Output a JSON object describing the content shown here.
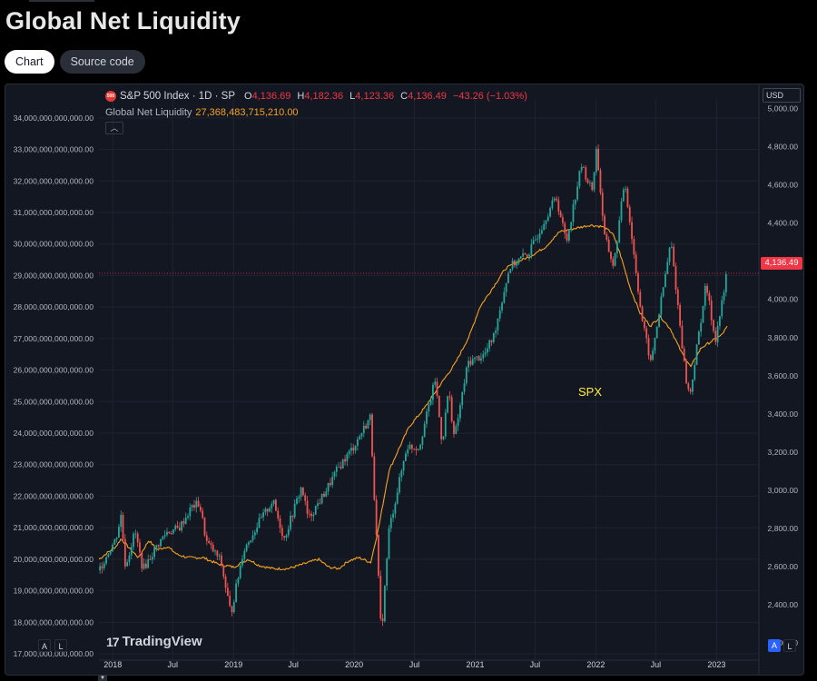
{
  "page": {
    "title": "Global Net Liquidity",
    "tabs": [
      {
        "label": "Chart",
        "active": true
      },
      {
        "label": "Source code",
        "active": false
      }
    ]
  },
  "legend": {
    "symbol_badge": "500",
    "symbol": "S&P 500 Index · 1D · SP",
    "ohlc": [
      {
        "k": "O",
        "v": "4,136.69"
      },
      {
        "k": "H",
        "v": "4,182.36"
      },
      {
        "k": "L",
        "v": "4,123.36"
      },
      {
        "k": "C",
        "v": "4,136.49"
      }
    ],
    "change": "−43.26 (−1.03%)",
    "indicator_name": "Global Net Liquidity",
    "indicator_value": "27,368,483,715,210.00",
    "collapse_icon": "chevron-up-icon"
  },
  "currency_button": "USD",
  "last_price_tag": "4,136.49",
  "annotation": "SPX",
  "brand": "TradingView",
  "scale_buttons": {
    "left_a": "A",
    "left_l": "L",
    "right_a": "A",
    "right_l": "L"
  },
  "colors": {
    "background": "#131722",
    "up": "#26a69a",
    "down": "#ef5350",
    "liquidity": "#f7a21b",
    "annotation": "#ffeb3b",
    "price_line": "#f23645"
  },
  "chart_data": {
    "type": "line",
    "x_ticks": [
      "2018",
      "Jul",
      "2019",
      "Jul",
      "2020",
      "Jul",
      "2021",
      "Jul",
      "2022",
      "Jul",
      "2023"
    ],
    "left_axis": {
      "ticks": [
        "34,000,000,000,000.00",
        "33,000,000,000,000.00",
        "32,000,000,000,000.00",
        "31,000,000,000,000.00",
        "30,000,000,000,000.00",
        "29,000,000,000,000.00",
        "28,000,000,000,000.00",
        "27,000,000,000,000.00",
        "26,000,000,000,000.00",
        "25,000,000,000,000.00",
        "24,000,000,000,000.00",
        "23,000,000,000,000.00",
        "22,000,000,000,000.00",
        "21,000,000,000,000.00",
        "20,000,000,000,000.00",
        "19,000,000,000,000.00",
        "18,000,000,000,000.00",
        "17,000,000,000,000.00"
      ],
      "range": [
        16800000000000,
        34600000000000
      ]
    },
    "right_axis": {
      "ticks": [
        "5,000.00",
        "4,800.00",
        "4,600.00",
        "4,400.00",
        "4,200.00",
        "4,000.00",
        "3,800.00",
        "3,600.00",
        "3,400.00",
        "3,200.00",
        "3,000.00",
        "2,800.00",
        "2,600.00",
        "2,400.00",
        "2,200.00"
      ],
      "range": [
        2110,
        5050
      ]
    },
    "series": [
      {
        "kind": "candles",
        "axis": "right",
        "points": [
          [
            "2017-11-20",
            2580
          ],
          [
            "2017-12-15",
            2665
          ],
          [
            "2018-01-10",
            2745
          ],
          [
            "2018-01-26",
            2870
          ],
          [
            "2018-02-08",
            2600
          ],
          [
            "2018-03-09",
            2785
          ],
          [
            "2018-04-02",
            2585
          ],
          [
            "2018-05-15",
            2710
          ],
          [
            "2018-06-12",
            2780
          ],
          [
            "2018-07-20",
            2800
          ],
          [
            "2018-08-29",
            2915
          ],
          [
            "2018-09-20",
            2930
          ],
          [
            "2018-10-11",
            2730
          ],
          [
            "2018-11-23",
            2630
          ],
          [
            "2018-12-24",
            2350
          ],
          [
            "2019-01-30",
            2680
          ],
          [
            "2019-03-15",
            2820
          ],
          [
            "2019-04-30",
            2945
          ],
          [
            "2019-06-03",
            2745
          ],
          [
            "2019-07-26",
            3020
          ],
          [
            "2019-08-15",
            2850
          ],
          [
            "2019-09-30",
            2975
          ],
          [
            "2019-11-15",
            3120
          ],
          [
            "2019-12-31",
            3230
          ],
          [
            "2020-02-19",
            3385
          ],
          [
            "2020-03-23",
            2235
          ],
          [
            "2020-04-15",
            2790
          ],
          [
            "2020-06-08",
            3230
          ],
          [
            "2020-07-15",
            3225
          ],
          [
            "2020-09-02",
            3580
          ],
          [
            "2020-09-23",
            3240
          ],
          [
            "2020-10-12",
            3530
          ],
          [
            "2020-10-30",
            3270
          ],
          [
            "2020-12-10",
            3670
          ],
          [
            "2021-01-29",
            3710
          ],
          [
            "2021-02-26",
            3810
          ],
          [
            "2021-04-15",
            4170
          ],
          [
            "2021-06-15",
            4250
          ],
          [
            "2021-08-16",
            4480
          ],
          [
            "2021-09-03",
            4535
          ],
          [
            "2021-10-04",
            4300
          ],
          [
            "2021-11-18",
            4705
          ],
          [
            "2021-12-20",
            4570
          ],
          [
            "2022-01-03",
            4795
          ],
          [
            "2022-01-27",
            4330
          ],
          [
            "2022-02-24",
            4170
          ],
          [
            "2022-03-29",
            4630
          ],
          [
            "2022-05-20",
            3900
          ],
          [
            "2022-06-16",
            3665
          ],
          [
            "2022-08-16",
            4305
          ],
          [
            "2022-09-30",
            3585
          ],
          [
            "2022-10-12",
            3490
          ],
          [
            "2022-11-30",
            4080
          ],
          [
            "2022-12-28",
            3785
          ],
          [
            "2023-01-26",
            4060
          ],
          [
            "2023-02-02",
            4180
          ]
        ]
      },
      {
        "kind": "line",
        "name": "Global Net Liquidity",
        "axis": "left",
        "points": [
          [
            "2017-11-20",
            20000000000000
          ],
          [
            "2017-12-15",
            20200000000000
          ],
          [
            "2018-01-10",
            20400000000000
          ],
          [
            "2018-01-26",
            20650000000000
          ],
          [
            "2018-02-20",
            20350000000000
          ],
          [
            "2018-03-20",
            20050000000000
          ],
          [
            "2018-04-20",
            20600000000000
          ],
          [
            "2018-05-15",
            20300000000000
          ],
          [
            "2018-06-15",
            20400000000000
          ],
          [
            "2018-07-15",
            20150000000000
          ],
          [
            "2018-08-15",
            20050000000000
          ],
          [
            "2018-10-01",
            20050000000000
          ],
          [
            "2018-11-15",
            19850000000000
          ],
          [
            "2019-01-01",
            19750000000000
          ],
          [
            "2019-02-15",
            20000000000000
          ],
          [
            "2019-03-20",
            19800000000000
          ],
          [
            "2019-05-01",
            19700000000000
          ],
          [
            "2019-06-15",
            19700000000000
          ],
          [
            "2019-08-01",
            19850000000000
          ],
          [
            "2019-09-15",
            20000000000000
          ],
          [
            "2019-10-15",
            19750000000000
          ],
          [
            "2019-11-15",
            19700000000000
          ],
          [
            "2019-12-15",
            19950000000000
          ],
          [
            "2020-01-15",
            20050000000000
          ],
          [
            "2020-02-20",
            19900000000000
          ],
          [
            "2020-03-15",
            21000000000000
          ],
          [
            "2020-04-15",
            22800000000000
          ],
          [
            "2020-05-15",
            23500000000000
          ],
          [
            "2020-06-15",
            24200000000000
          ],
          [
            "2020-08-01",
            24800000000000
          ],
          [
            "2020-09-15",
            25500000000000
          ],
          [
            "2020-11-01",
            26200000000000
          ],
          [
            "2020-12-15",
            27100000000000
          ],
          [
            "2021-01-15",
            28000000000000
          ],
          [
            "2021-03-01",
            28700000000000
          ],
          [
            "2021-04-01",
            29200000000000
          ],
          [
            "2021-05-01",
            29400000000000
          ],
          [
            "2021-06-15",
            29600000000000
          ],
          [
            "2021-08-01",
            29900000000000
          ],
          [
            "2021-09-15",
            30400000000000
          ],
          [
            "2021-11-01",
            30500000000000
          ],
          [
            "2021-12-15",
            30600000000000
          ],
          [
            "2022-01-20",
            30550000000000
          ],
          [
            "2022-02-20",
            30350000000000
          ],
          [
            "2022-03-15",
            29700000000000
          ],
          [
            "2022-04-15",
            28600000000000
          ],
          [
            "2022-05-15",
            27800000000000
          ],
          [
            "2022-06-15",
            27400000000000
          ],
          [
            "2022-07-15",
            27700000000000
          ],
          [
            "2022-08-15",
            27300000000000
          ],
          [
            "2022-09-15",
            26600000000000
          ],
          [
            "2022-10-15",
            26100000000000
          ],
          [
            "2022-11-15",
            26700000000000
          ],
          [
            "2022-12-15",
            26900000000000
          ],
          [
            "2023-01-15",
            27100000000000
          ],
          [
            "2023-02-02",
            27368483715210
          ]
        ]
      }
    ],
    "last_price": 4136.49,
    "grid": true,
    "legend_position": "top-left"
  }
}
